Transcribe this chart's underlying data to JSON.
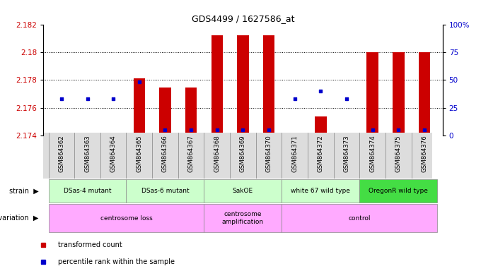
{
  "title": "GDS4499 / 1627586_at",
  "samples": [
    "GSM864362",
    "GSM864363",
    "GSM864364",
    "GSM864365",
    "GSM864366",
    "GSM864367",
    "GSM864368",
    "GSM864369",
    "GSM864370",
    "GSM864371",
    "GSM864372",
    "GSM864373",
    "GSM864374",
    "GSM864375",
    "GSM864376"
  ],
  "bar_values": [
    2.1741,
    2.1741,
    2.1742,
    2.1781,
    2.17745,
    2.17745,
    2.1812,
    2.1812,
    2.1812,
    2.1741,
    2.17535,
    2.1741,
    2.18,
    2.18,
    2.18
  ],
  "percentile_values": [
    33,
    33,
    33,
    48,
    5,
    5,
    5,
    5,
    5,
    33,
    40,
    33,
    5,
    5,
    5
  ],
  "ylim_left": [
    2.174,
    2.182
  ],
  "ylim_right": [
    0,
    100
  ],
  "yticks_left": [
    2.174,
    2.176,
    2.178,
    2.18,
    2.182
  ],
  "ytick_labels_left": [
    "2.174",
    "2.176",
    "2.178",
    "2.18",
    "2.182"
  ],
  "yticks_right": [
    0,
    25,
    50,
    75,
    100
  ],
  "ytick_labels_right": [
    "0",
    "25",
    "50",
    "75",
    "100%"
  ],
  "bar_color": "#cc0000",
  "dot_color": "#0000cc",
  "bar_baseline": 2.174,
  "strain_groups": [
    {
      "label": "DSas-4 mutant",
      "start": 0,
      "end": 3,
      "color": "#ccffcc"
    },
    {
      "label": "DSas-6 mutant",
      "start": 3,
      "end": 6,
      "color": "#ccffcc"
    },
    {
      "label": "SakOE",
      "start": 6,
      "end": 9,
      "color": "#ccffcc"
    },
    {
      "label": "white 67 wild type",
      "start": 9,
      "end": 12,
      "color": "#ccffcc"
    },
    {
      "label": "OregonR wild type",
      "start": 12,
      "end": 15,
      "color": "#44dd44"
    }
  ],
  "genotype_groups": [
    {
      "label": "centrosome loss",
      "start": 0,
      "end": 6,
      "color": "#ffaaff"
    },
    {
      "label": "centrosome\namplification",
      "start": 6,
      "end": 9,
      "color": "#ffaaff"
    },
    {
      "label": "control",
      "start": 9,
      "end": 15,
      "color": "#ffaaff"
    }
  ],
  "legend_items": [
    {
      "label": "transformed count",
      "color": "#cc0000"
    },
    {
      "label": "percentile rank within the sample",
      "color": "#0000cc"
    }
  ],
  "background_color": "#ffffff",
  "tick_label_color_left": "#cc0000",
  "tick_label_color_right": "#0000cc"
}
